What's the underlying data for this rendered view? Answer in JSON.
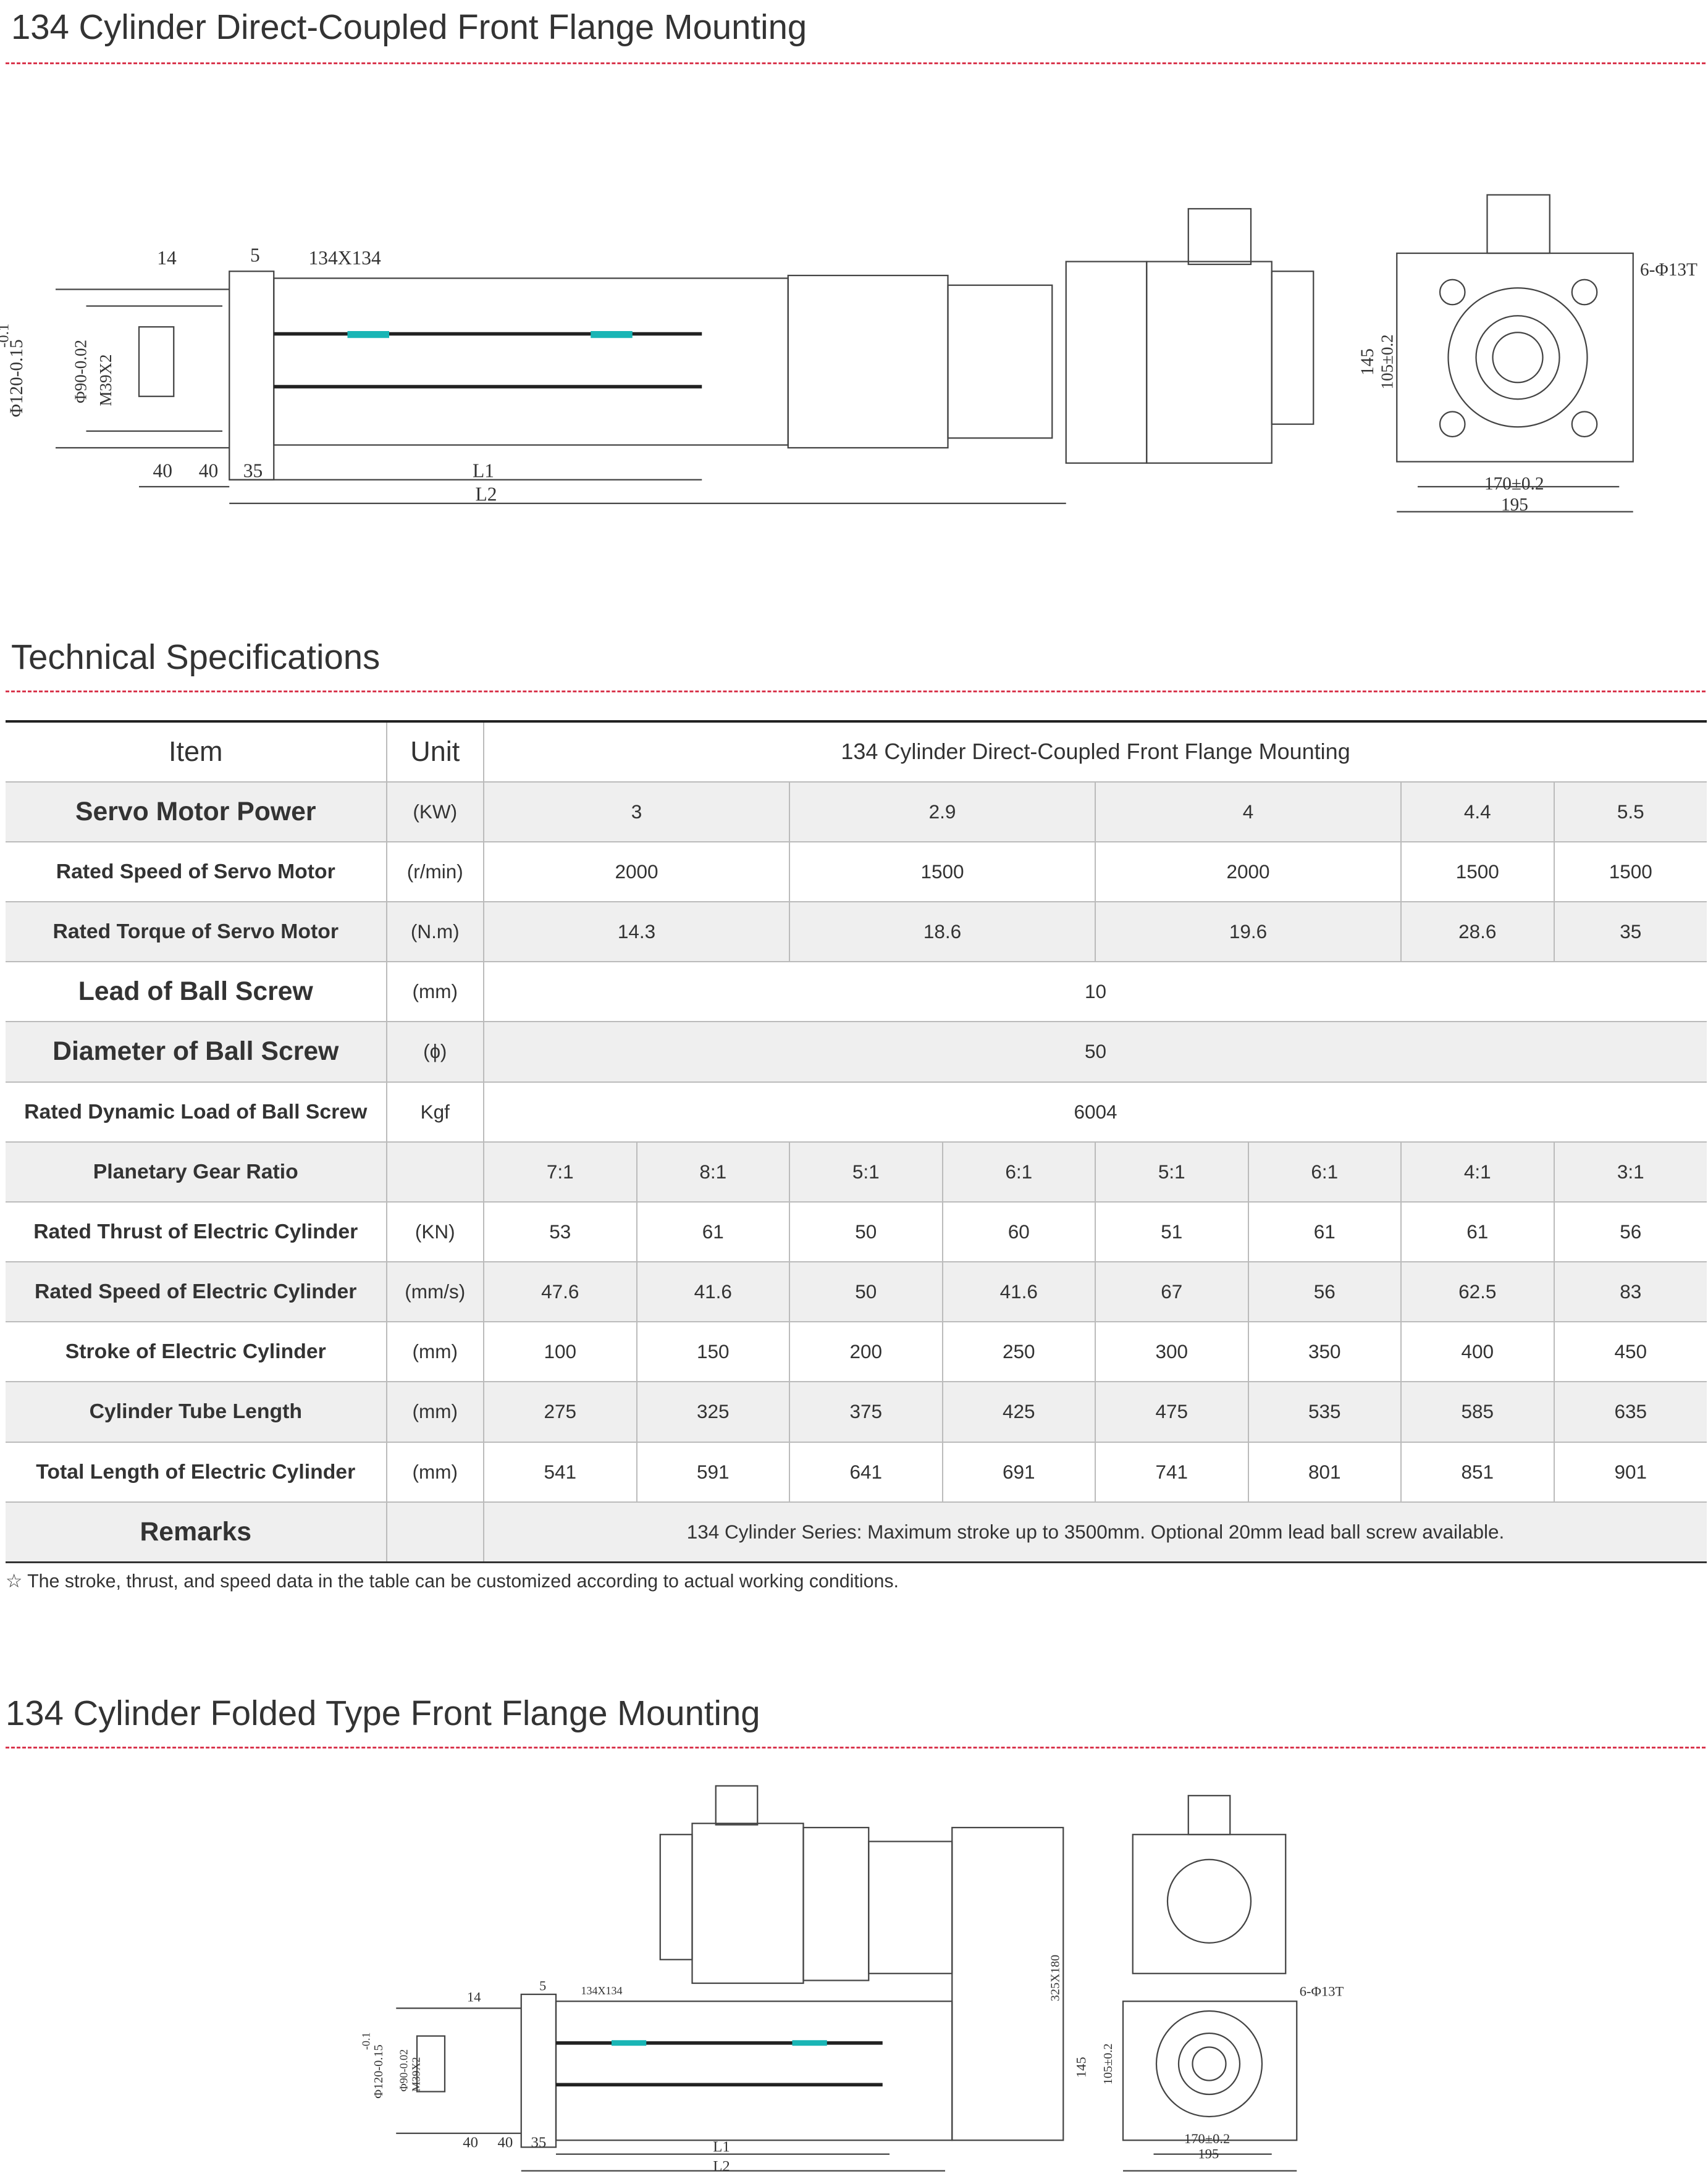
{
  "section1": {
    "title": "134 Cylinder Direct-Coupled Front Flange Mounting",
    "dims": {
      "d14": "14",
      "d5": "5",
      "d134": "134X134",
      "tol": "-0.1",
      "phi120": "Φ120-0.15",
      "phi90": "Φ90-0.02",
      "m39": "M39X2",
      "d40a": "40",
      "d40b": "40",
      "d35": "35",
      "l1": "L1",
      "l2": "L2",
      "d145": "145",
      "d105": "105±0.2",
      "d170": "170±0.2",
      "d195": "195",
      "holes": "6-Φ13T"
    }
  },
  "specs": {
    "title": "Technical Specifications",
    "header": {
      "item": "Item",
      "unit": "Unit",
      "model": "134 Cylinder Direct-Coupled Front Flange Mounting"
    },
    "rows": [
      {
        "item": "Servo Motor Power",
        "unit": "(KW)",
        "big": true,
        "values": [
          "3",
          "2.9",
          "4",
          "4.4",
          "5.5"
        ],
        "spans": [
          2,
          2,
          2,
          1,
          1
        ]
      },
      {
        "item": "Rated Speed of Servo Motor",
        "unit": "(r/min)",
        "values": [
          "2000",
          "1500",
          "2000",
          "1500",
          "1500"
        ],
        "spans": [
          2,
          2,
          2,
          1,
          1
        ]
      },
      {
        "item": "Rated Torque of Servo Motor",
        "unit": "(N.m)",
        "values": [
          "14.3",
          "18.6",
          "19.6",
          "28.6",
          "35"
        ],
        "spans": [
          2,
          2,
          2,
          1,
          1
        ]
      },
      {
        "item": "Lead of Ball Screw",
        "unit": "(mm)",
        "big": true,
        "values": [
          "10"
        ],
        "spans": [
          8
        ]
      },
      {
        "item": "Diameter of Ball Screw",
        "unit": "(ɸ)",
        "big": true,
        "values": [
          "50"
        ],
        "spans": [
          8
        ]
      },
      {
        "item": "Rated Dynamic Load of Ball Screw",
        "unit": "Kgf",
        "values": [
          "6004"
        ],
        "spans": [
          8
        ]
      },
      {
        "item": "Planetary Gear Ratio",
        "unit": "",
        "values": [
          "7:1",
          "8:1",
          "5:1",
          "6:1",
          "5:1",
          "6:1",
          "4:1",
          "3:1"
        ]
      },
      {
        "item": "Rated Thrust of Electric Cylinder",
        "unit": "(KN)",
        "values": [
          "53",
          "61",
          "50",
          "60",
          "51",
          "61",
          "61",
          "56"
        ]
      },
      {
        "item": "Rated Speed of Electric Cylinder",
        "unit": "(mm/s)",
        "values": [
          "47.6",
          "41.6",
          "50",
          "41.6",
          "67",
          "56",
          "62.5",
          "83"
        ]
      },
      {
        "item": "Stroke of Electric Cylinder",
        "unit": "(mm)",
        "values": [
          "100",
          "150",
          "200",
          "250",
          "300",
          "350",
          "400",
          "450"
        ]
      },
      {
        "item": "Cylinder Tube Length",
        "unit": "(mm)",
        "values": [
          "275",
          "325",
          "375",
          "425",
          "475",
          "535",
          "585",
          "635"
        ]
      },
      {
        "item": "Total Length of Electric Cylinder",
        "unit": "(mm)",
        "values": [
          "541",
          "591",
          "641",
          "691",
          "741",
          "801",
          "851",
          "901"
        ]
      },
      {
        "item": "Remarks",
        "unit": "",
        "big": true,
        "values": [
          "134 Cylinder Series: Maximum stroke up to 3500mm. Optional 20mm lead ball screw available."
        ],
        "spans": [
          8
        ]
      }
    ],
    "note": "☆  The stroke, thrust, and speed data in the table can be customized according to actual working conditions."
  },
  "section3": {
    "title": "134 Cylinder Folded Type Front Flange Mounting",
    "dims": {
      "d14": "14",
      "d5": "5",
      "d134": "134X134",
      "tol": "-0.1",
      "phi120": "Φ120-0.15",
      "phi90": "Φ90-0.02",
      "m39": "M39X2",
      "d40a": "40",
      "d40b": "40",
      "d35": "35",
      "l1": "L1",
      "l2": "L2",
      "d325": "325X180",
      "d145": "145",
      "d105": "105±0.2",
      "d170": "170±0.2",
      "d195": "195",
      "holes": "6-Φ13T"
    }
  },
  "colors": {
    "accent_dash": "#d9364d",
    "row_shade": "#efefef",
    "rod_marker": "#19b5b5"
  }
}
